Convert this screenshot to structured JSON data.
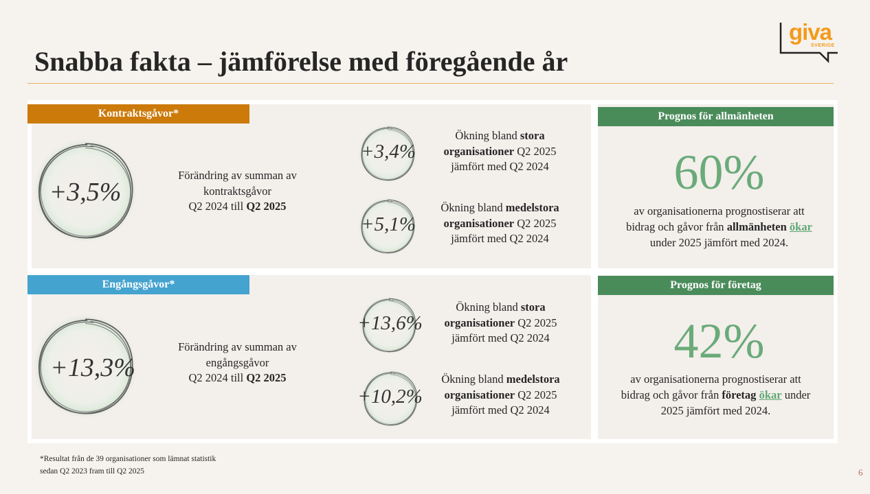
{
  "title": "Snabba fakta – jämförelse med föregående år",
  "logo": {
    "main": "giva",
    "sub": "SVERIGE"
  },
  "contract": {
    "header": "Kontraktsgåvor*",
    "main_value": "+3,5%",
    "main_desc_1": "Förändring av summan av",
    "main_desc_2": "kontraktsgåvor",
    "main_desc_3a": "Q2 2024 till ",
    "main_desc_3b": "Q2 2025",
    "large_value": "+3,4%",
    "medium_value": "+5,1%"
  },
  "onetime": {
    "header": "Engångsgåvor*",
    "main_value": "+13,3%",
    "main_desc_1": "Förändring av summan av",
    "main_desc_2": "engångsgåvor",
    "main_desc_3a": "Q2 2024 till ",
    "main_desc_3b": "Q2 2025",
    "large_value": "+13,6%",
    "medium_value": "+10,2%"
  },
  "sub_text": {
    "increase": "Ökning bland ",
    "large": "stora",
    "medium": "medelstora",
    "orgs": "organisationer",
    "q2_2025": " Q2 2025",
    "compared": "jämfört med Q2 2024"
  },
  "forecast_public": {
    "header": "Prognos för allmänheten",
    "percent": "60%",
    "line1": "av organisationerna prognostiserar att",
    "line2a": "bidrag och gåvor från ",
    "line2b": "allmänheten",
    "line2c": " ",
    "line2d": "ökar",
    "line3": "under 2025 jämfört med 2024."
  },
  "forecast_business": {
    "header": "Prognos för företag",
    "percent": "42%",
    "line1": "av organisationerna prognostiserar att",
    "line2a": "bidrag och gåvor från ",
    "line2b": "företag",
    "line2c": " ",
    "line2d": "ökar",
    "line2e": " under",
    "line3": "2025 jämfört med 2024."
  },
  "footnote_1": "*Resultat från de 39 organisationer som lämnat statistik",
  "footnote_2": "sedan Q2 2023 fram till Q2 2025",
  "page_number": "6"
}
